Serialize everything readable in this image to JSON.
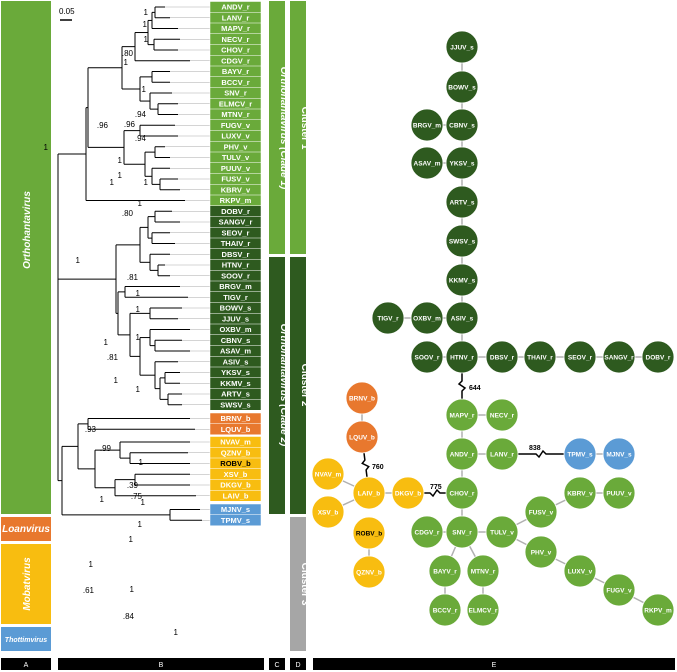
{
  "colors": {
    "orthohantavirus": "#6aaa3a",
    "clade2": "#2e5a1f",
    "loanvirus": "#e8782e",
    "mobatvirus": "#f8bd10",
    "thottimvirus": "#5b9bd5",
    "cluster3": "#a6a6a6",
    "panel": "#000000"
  },
  "scale_bar": "0.05",
  "genera": [
    {
      "name": "Orthohantavirus",
      "color": "orthohantavirus"
    },
    {
      "name": "Loanvirus",
      "color": "loanvirus"
    },
    {
      "name": "Mobatvirus",
      "color": "mobatvirus"
    },
    {
      "name": "Thottimvirus",
      "color": "thottimvirus"
    }
  ],
  "clades": [
    {
      "name": "Orthohantavirus (Clade 1)"
    },
    {
      "name": "Orthohantavirus (Clade 2)"
    }
  ],
  "clusters": [
    {
      "name": "Cluster 1"
    },
    {
      "name": "Cluster 2"
    },
    {
      "name": "Cluster 3"
    }
  ],
  "panels": [
    "A",
    "B",
    "C",
    "D",
    "E"
  ],
  "tips": [
    {
      "label": "ANDV_r",
      "group": "c1"
    },
    {
      "label": "LANV_r",
      "group": "c1"
    },
    {
      "label": "MAPV_r",
      "group": "c1"
    },
    {
      "label": "NECV_r",
      "group": "c1"
    },
    {
      "label": "CHOV_r",
      "group": "c1"
    },
    {
      "label": "CDGV_r",
      "group": "c1"
    },
    {
      "label": "BAYV_r",
      "group": "c1"
    },
    {
      "label": "BCCV_r",
      "group": "c1"
    },
    {
      "label": "SNV_r",
      "group": "c1"
    },
    {
      "label": "ELMCV_r",
      "group": "c1"
    },
    {
      "label": "MTNV_r",
      "group": "c1"
    },
    {
      "label": "FUGV_v",
      "group": "c1"
    },
    {
      "label": "LUXV_v",
      "group": "c1"
    },
    {
      "label": "PHV_v",
      "group": "c1"
    },
    {
      "label": "TULV_v",
      "group": "c1"
    },
    {
      "label": "PUUV_v",
      "group": "c1"
    },
    {
      "label": "FUSV_v",
      "group": "c1"
    },
    {
      "label": "KBRV_v",
      "group": "c1"
    },
    {
      "label": "RKPV_m",
      "group": "c1"
    },
    {
      "label": "DOBV_r",
      "group": "c2"
    },
    {
      "label": "SANGV_r",
      "group": "c2"
    },
    {
      "label": "SEOV_r",
      "group": "c2"
    },
    {
      "label": "THAIV_r",
      "group": "c2"
    },
    {
      "label": "DBSV_r",
      "group": "c2"
    },
    {
      "label": "HTNV_r",
      "group": "c2"
    },
    {
      "label": "SOOV_r",
      "group": "c2"
    },
    {
      "label": "BRGV_m",
      "group": "c2"
    },
    {
      "label": "TIGV_r",
      "group": "c2"
    },
    {
      "label": "BOWV_s",
      "group": "c2"
    },
    {
      "label": "JJUV_s",
      "group": "c2"
    },
    {
      "label": "OXBV_m",
      "group": "c2"
    },
    {
      "label": "CBNV_s",
      "group": "c2"
    },
    {
      "label": "ASAV_m",
      "group": "c2"
    },
    {
      "label": "ASIV_s",
      "group": "c2"
    },
    {
      "label": "YKSV_s",
      "group": "c2"
    },
    {
      "label": "KKMV_s",
      "group": "c2"
    },
    {
      "label": "ARTV_s",
      "group": "c2"
    },
    {
      "label": "SWSV_s",
      "group": "c2"
    },
    {
      "label": "BRNV_b",
      "group": "loan"
    },
    {
      "label": "LQUV_b",
      "group": "loan"
    },
    {
      "label": "NVAV_m",
      "group": "moba"
    },
    {
      "label": "QZNV_b",
      "group": "moba"
    },
    {
      "label": "ROBV_b",
      "group": "moba"
    },
    {
      "label": "XSV_b",
      "group": "moba"
    },
    {
      "label": "DKGV_b",
      "group": "moba"
    },
    {
      "label": "LAIV_b",
      "group": "moba"
    },
    {
      "label": "MJNV_s",
      "group": "thot"
    },
    {
      "label": "TPMV_s",
      "group": "thot"
    }
  ],
  "support_values": [
    {
      "text": "1",
      "id": "s1"
    },
    {
      "text": "1",
      "id": "s2"
    },
    {
      "text": "1",
      "id": "s3"
    },
    {
      "text": ".80",
      "id": "s4"
    },
    {
      "text": "1",
      "id": "s5"
    },
    {
      "text": "1",
      "id": "s6"
    },
    {
      "text": ".94",
      "id": "s7"
    },
    {
      "text": ".96",
      "id": "s8"
    },
    {
      "text": ".94",
      "id": "s9"
    },
    {
      "text": ".96",
      "id": "s10"
    },
    {
      "text": "1",
      "id": "s11"
    },
    {
      "text": "1",
      "id": "s12"
    },
    {
      "text": "1",
      "id": "s13"
    },
    {
      "text": "1",
      "id": "s14"
    },
    {
      "text": ".80",
      "id": "s15"
    },
    {
      "text": "1",
      "id": "s16"
    },
    {
      "text": "1",
      "id": "s17"
    },
    {
      "text": "1",
      "id": "s18"
    },
    {
      "text": ".81",
      "id": "s19"
    },
    {
      "text": "1",
      "id": "s20"
    },
    {
      "text": "1",
      "id": "s21"
    },
    {
      "text": "1",
      "id": "s22"
    },
    {
      "text": "1",
      "id": "s23"
    },
    {
      "text": ".81",
      "id": "s24"
    },
    {
      "text": "1",
      "id": "s25"
    },
    {
      "text": "1",
      "id": "s26"
    },
    {
      "text": ".93",
      "id": "s27"
    },
    {
      "text": ".99",
      "id": "s28"
    },
    {
      "text": "1",
      "id": "s29"
    },
    {
      "text": ".39",
      "id": "s30"
    },
    {
      "text": ".75",
      "id": "s31"
    },
    {
      "text": "1",
      "id": "s32"
    },
    {
      "text": "1",
      "id": "s33"
    },
    {
      "text": "1",
      "id": "s34"
    },
    {
      "text": "1",
      "id": "s35"
    },
    {
      "text": "1",
      "id": "s36"
    },
    {
      "text": ".61",
      "id": "s37"
    },
    {
      "text": "1",
      "id": "s38"
    },
    {
      "text": ".84",
      "id": "s39"
    },
    {
      "text": "1",
      "id": "s40"
    }
  ],
  "network": {
    "nodes": [
      {
        "id": "JJUV_s",
        "group": "c2"
      },
      {
        "id": "BOWV_s",
        "group": "c2"
      },
      {
        "id": "BRGV_m",
        "group": "c2"
      },
      {
        "id": "CBNV_s",
        "group": "c2"
      },
      {
        "id": "ASAV_m",
        "group": "c2"
      },
      {
        "id": "YKSV_s",
        "group": "c2"
      },
      {
        "id": "ARTV_s",
        "group": "c2"
      },
      {
        "id": "SWSV_s",
        "group": "c2"
      },
      {
        "id": "KKMV_s",
        "group": "c2"
      },
      {
        "id": "TIGV_r",
        "group": "c2"
      },
      {
        "id": "OXBV_m",
        "group": "c2"
      },
      {
        "id": "ASIV_s",
        "group": "c2"
      },
      {
        "id": "SOOV_r",
        "group": "c2"
      },
      {
        "id": "HTNV_r",
        "group": "c2"
      },
      {
        "id": "DBSV_r",
        "group": "c2"
      },
      {
        "id": "THAIV_r",
        "group": "c2"
      },
      {
        "id": "SEOV_r",
        "group": "c2"
      },
      {
        "id": "SANGV_r",
        "group": "c2"
      },
      {
        "id": "DOBV_r",
        "group": "c2"
      },
      {
        "id": "BRNV_b",
        "group": "loan"
      },
      {
        "id": "LQUV_b",
        "group": "loan"
      },
      {
        "id": "MAPV_r",
        "group": "c1"
      },
      {
        "id": "NECV_r",
        "group": "c1"
      },
      {
        "id": "ANDV_r",
        "group": "c1"
      },
      {
        "id": "LANV_r",
        "group": "c1"
      },
      {
        "id": "TPMV_s",
        "group": "thot"
      },
      {
        "id": "MJNV_s",
        "group": "thot"
      },
      {
        "id": "NVAV_m",
        "group": "moba"
      },
      {
        "id": "LAIV_b",
        "group": "moba"
      },
      {
        "id": "DKGV_b",
        "group": "moba"
      },
      {
        "id": "XSV_b",
        "group": "moba"
      },
      {
        "id": "ROBV_b",
        "group": "moba"
      },
      {
        "id": "QZNV_b",
        "group": "moba"
      },
      {
        "id": "CHOV_r",
        "group": "c1"
      },
      {
        "id": "KBRV_v",
        "group": "c1"
      },
      {
        "id": "PUUV_v",
        "group": "c1"
      },
      {
        "id": "FUSV_v",
        "group": "c1"
      },
      {
        "id": "CDGV_r",
        "group": "c1"
      },
      {
        "id": "SNV_r",
        "group": "c1"
      },
      {
        "id": "TULV_v",
        "group": "c1"
      },
      {
        "id": "PHV_v",
        "group": "c1"
      },
      {
        "id": "BAYV_r",
        "group": "c1"
      },
      {
        "id": "MTNV_r",
        "group": "c1"
      },
      {
        "id": "LUXV_v",
        "group": "c1"
      },
      {
        "id": "BCCV_r",
        "group": "c1"
      },
      {
        "id": "ELMCV_r",
        "group": "c1"
      },
      {
        "id": "FUGV_v",
        "group": "c1"
      },
      {
        "id": "RKPV_m",
        "group": "c1"
      }
    ],
    "long_links": [
      {
        "label": "644"
      },
      {
        "label": "838"
      },
      {
        "label": "760"
      },
      {
        "label": "775"
      }
    ]
  }
}
